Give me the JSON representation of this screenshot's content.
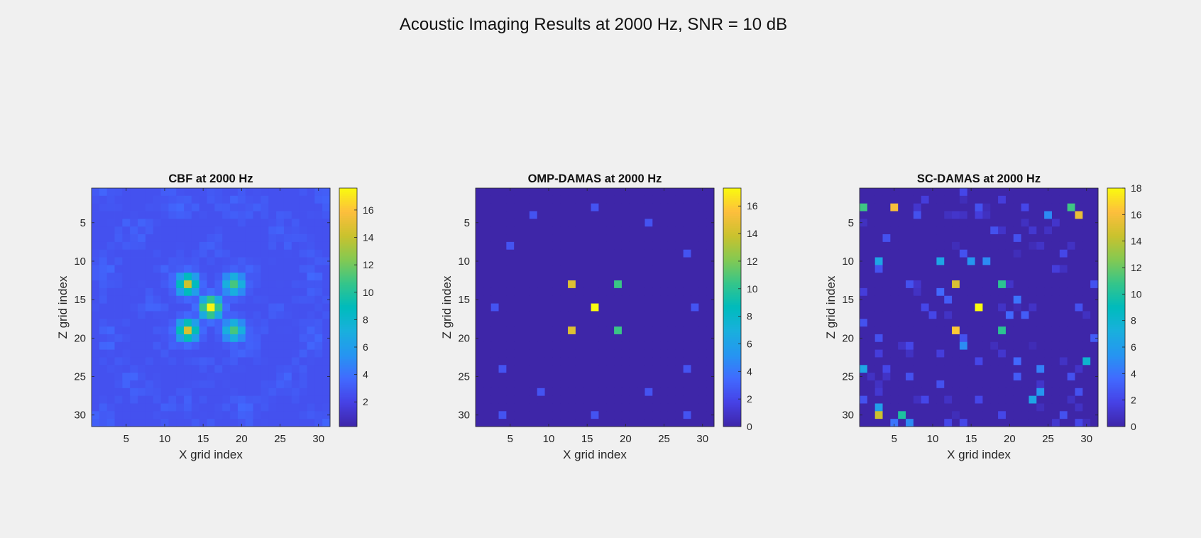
{
  "figure": {
    "title": "Acoustic Imaging Results at 2000 Hz, SNR = 10 dB"
  },
  "chart_data": [
    {
      "type": "heatmap",
      "title": "CBF at 2000 Hz",
      "xlabel": "X grid index",
      "ylabel": "Z grid index",
      "grid_size": [
        31,
        31
      ],
      "xlim": [
        0.5,
        31.5
      ],
      "ylim": [
        0.5,
        31.5
      ],
      "y_reversed": true,
      "xticks": [
        5,
        10,
        15,
        20,
        25,
        30
      ],
      "yticks": [
        5,
        10,
        15,
        20,
        25,
        30
      ],
      "colormap": "parula",
      "clim": [
        0.2,
        17.6
      ],
      "colorbar_ticks": [
        2,
        4,
        6,
        8,
        10,
        12,
        14,
        16
      ],
      "background_level": 2.6,
      "peaks": [
        {
          "x": 16,
          "z": 16,
          "value": 17.4
        },
        {
          "x": 13,
          "z": 13,
          "value": 14.2
        },
        {
          "x": 19,
          "z": 13,
          "value": 11.0
        },
        {
          "x": 13,
          "z": 19,
          "value": 14.6
        },
        {
          "x": 19,
          "z": 19,
          "value": 11.0
        }
      ]
    },
    {
      "type": "heatmap",
      "title": "OMP-DAMAS at 2000 Hz",
      "xlabel": "X grid index",
      "ylabel": "Z grid index",
      "grid_size": [
        31,
        31
      ],
      "xlim": [
        0.5,
        31.5
      ],
      "ylim": [
        0.5,
        31.5
      ],
      "y_reversed": true,
      "xticks": [
        5,
        10,
        15,
        20,
        25,
        30
      ],
      "yticks": [
        5,
        10,
        15,
        20,
        25,
        30
      ],
      "colormap": "parula",
      "clim": [
        0,
        17.3
      ],
      "colorbar_ticks": [
        0,
        2,
        4,
        6,
        8,
        10,
        12,
        14,
        16
      ],
      "background_level": 0,
      "points": [
        {
          "x": 16,
          "z": 3,
          "value": 2.5
        },
        {
          "x": 8,
          "z": 4,
          "value": 2.5
        },
        {
          "x": 23,
          "z": 5,
          "value": 2.5
        },
        {
          "x": 5,
          "z": 8,
          "value": 2.5
        },
        {
          "x": 28,
          "z": 9,
          "value": 2.5
        },
        {
          "x": 13,
          "z": 13,
          "value": 14.5
        },
        {
          "x": 19,
          "z": 13,
          "value": 10.5
        },
        {
          "x": 3,
          "z": 16,
          "value": 2.5
        },
        {
          "x": 16,
          "z": 16,
          "value": 17.3
        },
        {
          "x": 29,
          "z": 16,
          "value": 2.5
        },
        {
          "x": 13,
          "z": 19,
          "value": 14.5
        },
        {
          "x": 19,
          "z": 19,
          "value": 10.5
        },
        {
          "x": 4,
          "z": 24,
          "value": 2.5
        },
        {
          "x": 28,
          "z": 24,
          "value": 2.5
        },
        {
          "x": 9,
          "z": 27,
          "value": 2.5
        },
        {
          "x": 23,
          "z": 27,
          "value": 2.5
        },
        {
          "x": 4,
          "z": 30,
          "value": 2.5
        },
        {
          "x": 16,
          "z": 30,
          "value": 2.5
        },
        {
          "x": 28,
          "z": 30,
          "value": 2.5
        }
      ]
    },
    {
      "type": "heatmap",
      "title": "SC-DAMAS at 2000 Hz",
      "xlabel": "X grid index",
      "ylabel": "Z grid index",
      "grid_size": [
        31,
        31
      ],
      "xlim": [
        0.5,
        31.5
      ],
      "ylim": [
        0.5,
        31.5
      ],
      "y_reversed": true,
      "xticks": [
        5,
        10,
        15,
        20,
        25,
        30
      ],
      "yticks": [
        5,
        10,
        15,
        20,
        25,
        30
      ],
      "colormap": "parula",
      "clim": [
        0,
        18
      ],
      "colorbar_ticks": [
        0,
        2,
        4,
        6,
        8,
        10,
        12,
        14,
        16,
        18
      ],
      "background_level": 0,
      "points": [
        {
          "x": 14,
          "z": 1,
          "value": 2.0
        },
        {
          "x": 9,
          "z": 2,
          "value": 1.5
        },
        {
          "x": 19,
          "z": 2,
          "value": 1.5
        },
        {
          "x": 1,
          "z": 3,
          "value": 11.0
        },
        {
          "x": 5,
          "z": 3,
          "value": 16.0
        },
        {
          "x": 16,
          "z": 3,
          "value": 2.5
        },
        {
          "x": 22,
          "z": 3,
          "value": 2.0
        },
        {
          "x": 28,
          "z": 3,
          "value": 11.0
        },
        {
          "x": 8,
          "z": 4,
          "value": 2.5
        },
        {
          "x": 16,
          "z": 4,
          "value": 1.5
        },
        {
          "x": 25,
          "z": 4,
          "value": 5.0
        },
        {
          "x": 29,
          "z": 4,
          "value": 15.5
        },
        {
          "x": 18,
          "z": 6,
          "value": 2.5
        },
        {
          "x": 4,
          "z": 7,
          "value": 2.5
        },
        {
          "x": 21,
          "z": 7,
          "value": 2.5
        },
        {
          "x": 3,
          "z": 10,
          "value": 6.5
        },
        {
          "x": 11,
          "z": 10,
          "value": 6.5
        },
        {
          "x": 15,
          "z": 10,
          "value": 5.5
        },
        {
          "x": 17,
          "z": 10,
          "value": 5.0
        },
        {
          "x": 14,
          "z": 9,
          "value": 2.5
        },
        {
          "x": 27,
          "z": 9,
          "value": 2.0
        },
        {
          "x": 3,
          "z": 11,
          "value": 2.5
        },
        {
          "x": 26,
          "z": 11,
          "value": 1.5
        },
        {
          "x": 13,
          "z": 13,
          "value": 15.0
        },
        {
          "x": 19,
          "z": 13,
          "value": 10.5
        },
        {
          "x": 7,
          "z": 13,
          "value": 2.5
        },
        {
          "x": 31,
          "z": 13,
          "value": 2.5
        },
        {
          "x": 11,
          "z": 14,
          "value": 3.5
        },
        {
          "x": 1,
          "z": 14,
          "value": 1.5
        },
        {
          "x": 12,
          "z": 15,
          "value": 3.0
        },
        {
          "x": 21,
          "z": 15,
          "value": 4.0
        },
        {
          "x": 16,
          "z": 16,
          "value": 18.0
        },
        {
          "x": 9,
          "z": 16,
          "value": 2.0
        },
        {
          "x": 29,
          "z": 16,
          "value": 2.5
        },
        {
          "x": 20,
          "z": 17,
          "value": 3.5
        },
        {
          "x": 22,
          "z": 17,
          "value": 3.0
        },
        {
          "x": 10,
          "z": 17,
          "value": 2.0
        },
        {
          "x": 1,
          "z": 18,
          "value": 2.5
        },
        {
          "x": 13,
          "z": 19,
          "value": 16.5
        },
        {
          "x": 19,
          "z": 19,
          "value": 10.5
        },
        {
          "x": 14,
          "z": 20,
          "value": 2.5
        },
        {
          "x": 3,
          "z": 20,
          "value": 2.5
        },
        {
          "x": 31,
          "z": 20,
          "value": 3.0
        },
        {
          "x": 14,
          "z": 21,
          "value": 5.0
        },
        {
          "x": 7,
          "z": 21,
          "value": 2.0
        },
        {
          "x": 3,
          "z": 22,
          "value": 1.5
        },
        {
          "x": 11,
          "z": 22,
          "value": 1.5
        },
        {
          "x": 21,
          "z": 23,
          "value": 3.5
        },
        {
          "x": 30,
          "z": 23,
          "value": 8.0
        },
        {
          "x": 16,
          "z": 23,
          "value": 2.0
        },
        {
          "x": 1,
          "z": 24,
          "value": 6.5
        },
        {
          "x": 24,
          "z": 24,
          "value": 4.5
        },
        {
          "x": 4,
          "z": 24,
          "value": 2.0
        },
        {
          "x": 21,
          "z": 25,
          "value": 3.0
        },
        {
          "x": 28,
          "z": 25,
          "value": 2.5
        },
        {
          "x": 7,
          "z": 25,
          "value": 2.5
        },
        {
          "x": 11,
          "z": 26,
          "value": 2.5
        },
        {
          "x": 24,
          "z": 27,
          "value": 5.5
        },
        {
          "x": 29,
          "z": 27,
          "value": 2.5
        },
        {
          "x": 23,
          "z": 28,
          "value": 6.5
        },
        {
          "x": 1,
          "z": 28,
          "value": 2.5
        },
        {
          "x": 9,
          "z": 28,
          "value": 2.0
        },
        {
          "x": 16,
          "z": 28,
          "value": 2.0
        },
        {
          "x": 3,
          "z": 29,
          "value": 6.0
        },
        {
          "x": 3,
          "z": 30,
          "value": 14.5
        },
        {
          "x": 6,
          "z": 30,
          "value": 10.0
        },
        {
          "x": 19,
          "z": 30,
          "value": 2.0
        },
        {
          "x": 27,
          "z": 30,
          "value": 2.5
        },
        {
          "x": 5,
          "z": 31,
          "value": 4.0
        },
        {
          "x": 7,
          "z": 31,
          "value": 5.0
        },
        {
          "x": 12,
          "z": 31,
          "value": 2.0
        },
        {
          "x": 14,
          "z": 31,
          "value": 2.0
        },
        {
          "x": 29,
          "z": 31,
          "value": 2.0
        }
      ],
      "noise_level": 1.0
    }
  ]
}
